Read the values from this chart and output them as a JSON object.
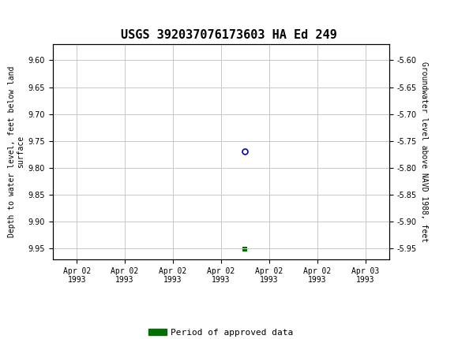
{
  "title": "USGS 392037076173603 HA Ed 249",
  "title_fontsize": 11,
  "ylabel_left": "Depth to water level, feet below land\nsurface",
  "ylabel_right": "Groundwater level above NAVD 1988, feet",
  "ylim_left": [
    9.97,
    9.57
  ],
  "ylim_right": [
    -5.97,
    -5.57
  ],
  "yticks_left": [
    9.6,
    9.65,
    9.7,
    9.75,
    9.8,
    9.85,
    9.9,
    9.95
  ],
  "yticks_right": [
    -5.6,
    -5.65,
    -5.7,
    -5.75,
    -5.8,
    -5.85,
    -5.9,
    -5.95
  ],
  "data_point_x_hours": 32,
  "data_point_y": 9.77,
  "data_point_color": "#0000cc",
  "data_point_markerfacecolor": "none",
  "data_point_markersize": 5,
  "green_marker_x_hours": 32,
  "green_marker_y": 9.951,
  "green_marker_color": "#007000",
  "green_marker_size": 4,
  "xlim_start_hours": 0,
  "xlim_end_hours": 56,
  "xtick_hours": [
    4,
    12,
    20,
    28,
    36,
    44,
    52
  ],
  "xtick_labels": [
    "Apr 02\n1993",
    "Apr 02\n1993",
    "Apr 02\n1993",
    "Apr 02\n1993",
    "Apr 02\n1993",
    "Apr 02\n1993",
    "Apr 03\n1993"
  ],
  "grid_color": "#c8c8c8",
  "bg_color": "#ffffff",
  "header_color": "#1a6b3c",
  "legend_label": "Period of approved data",
  "legend_color": "#007000",
  "font_size_ticks": 7,
  "font_size_ylabel": 7,
  "font_size_legend": 8
}
